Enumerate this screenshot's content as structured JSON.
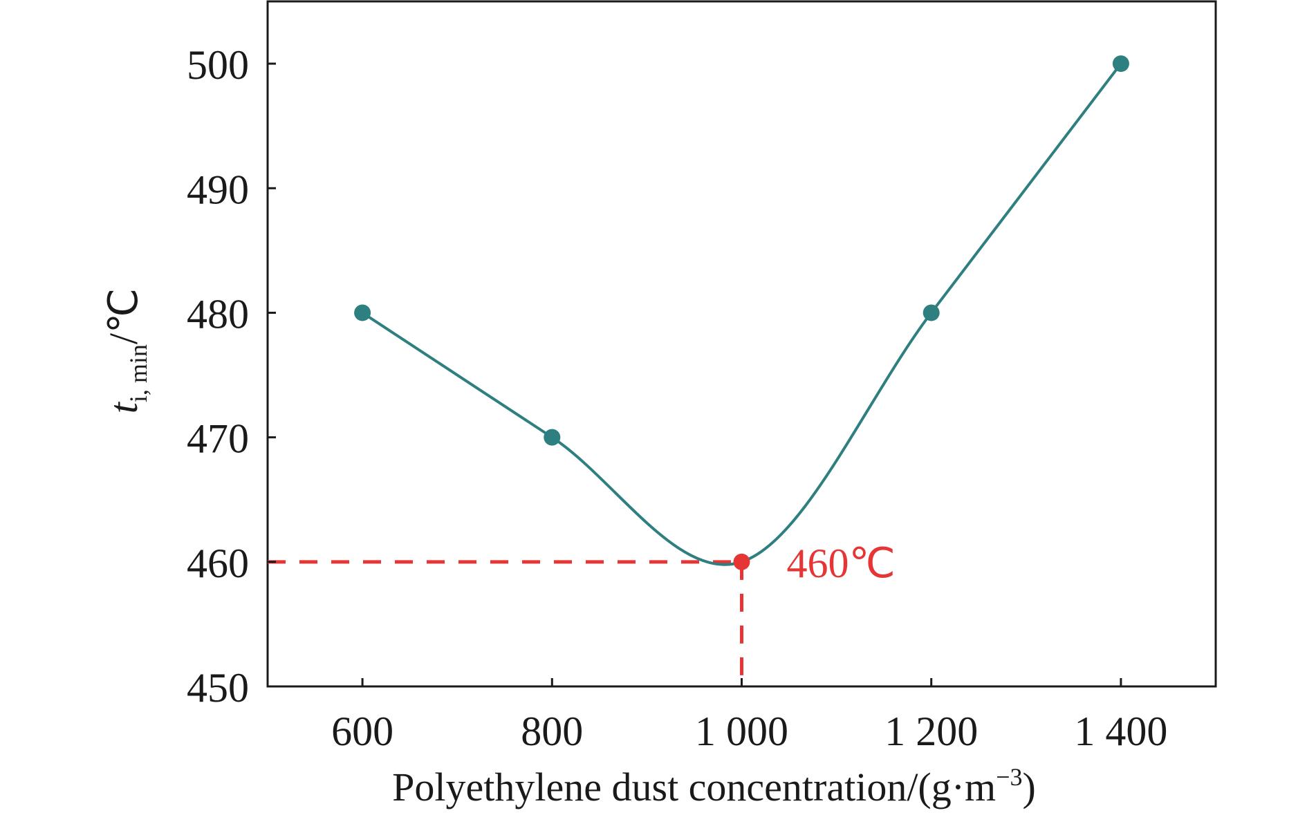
{
  "chart_data": {
    "type": "line",
    "x": [
      600,
      800,
      1000,
      1200,
      1400
    ],
    "series": [
      {
        "values": [
          480,
          470,
          460,
          480,
          500
        ]
      }
    ],
    "xlim": [
      500,
      1500
    ],
    "ylim": [
      450,
      505
    ],
    "xticks": [
      600,
      800,
      1000,
      1200,
      1400
    ],
    "xtick_labels": [
      "600",
      "800",
      "1 000",
      "1 200",
      "1 400"
    ],
    "yticks": [
      450,
      460,
      470,
      480,
      490,
      500
    ],
    "ytick_labels": [
      "450",
      "460",
      "470",
      "480",
      "490",
      "500"
    ],
    "xlabel": "Polyethylene dust concentration/(g·m",
    "xlabel_sup": "−3",
    "xlabel_close": ")",
    "ylabel_main": "t",
    "ylabel_sub": "i, min",
    "ylabel_unit": "/℃",
    "grid": false,
    "legend": "none",
    "line_color": "#2e7f80",
    "highlight": {
      "x": 1000,
      "y": 460,
      "label": "460℃",
      "color": "#e63535"
    }
  }
}
